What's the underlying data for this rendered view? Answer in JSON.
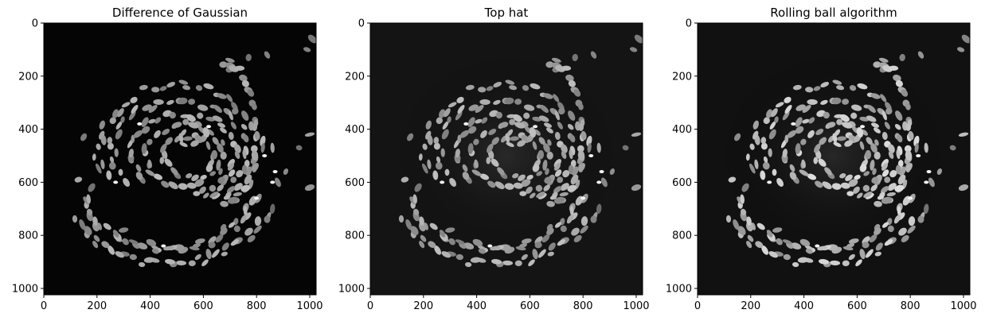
{
  "chart_data": [
    {
      "type": "heatmap",
      "title": "Difference of Gaussian",
      "xlim": [
        0,
        1024
      ],
      "ylim": [
        1024,
        0
      ],
      "xticks": [
        0,
        200,
        400,
        600,
        800,
        1000
      ],
      "yticks": [
        0,
        200,
        400,
        600,
        800,
        1000
      ],
      "colormap": "gray",
      "brightness": 0.75,
      "background": "#050505",
      "grid": false
    },
    {
      "type": "heatmap",
      "title": "Top hat",
      "xlim": [
        0,
        1024
      ],
      "ylim": [
        1024,
        0
      ],
      "xticks": [
        0,
        200,
        400,
        600,
        800,
        1000
      ],
      "yticks": [
        0,
        200,
        400,
        600,
        800,
        1000
      ],
      "colormap": "gray",
      "brightness": 0.8,
      "background": "#141414",
      "grid": false
    },
    {
      "type": "heatmap",
      "title": "Rolling ball algorithm",
      "xlim": [
        0,
        1024
      ],
      "ylim": [
        1024,
        0
      ],
      "xticks": [
        0,
        200,
        400,
        600,
        800,
        1000
      ],
      "yticks": [
        0,
        200,
        400,
        600,
        800,
        1000
      ],
      "colormap": "gray",
      "brightness": 0.95,
      "background": "#111111",
      "grid": false
    }
  ]
}
